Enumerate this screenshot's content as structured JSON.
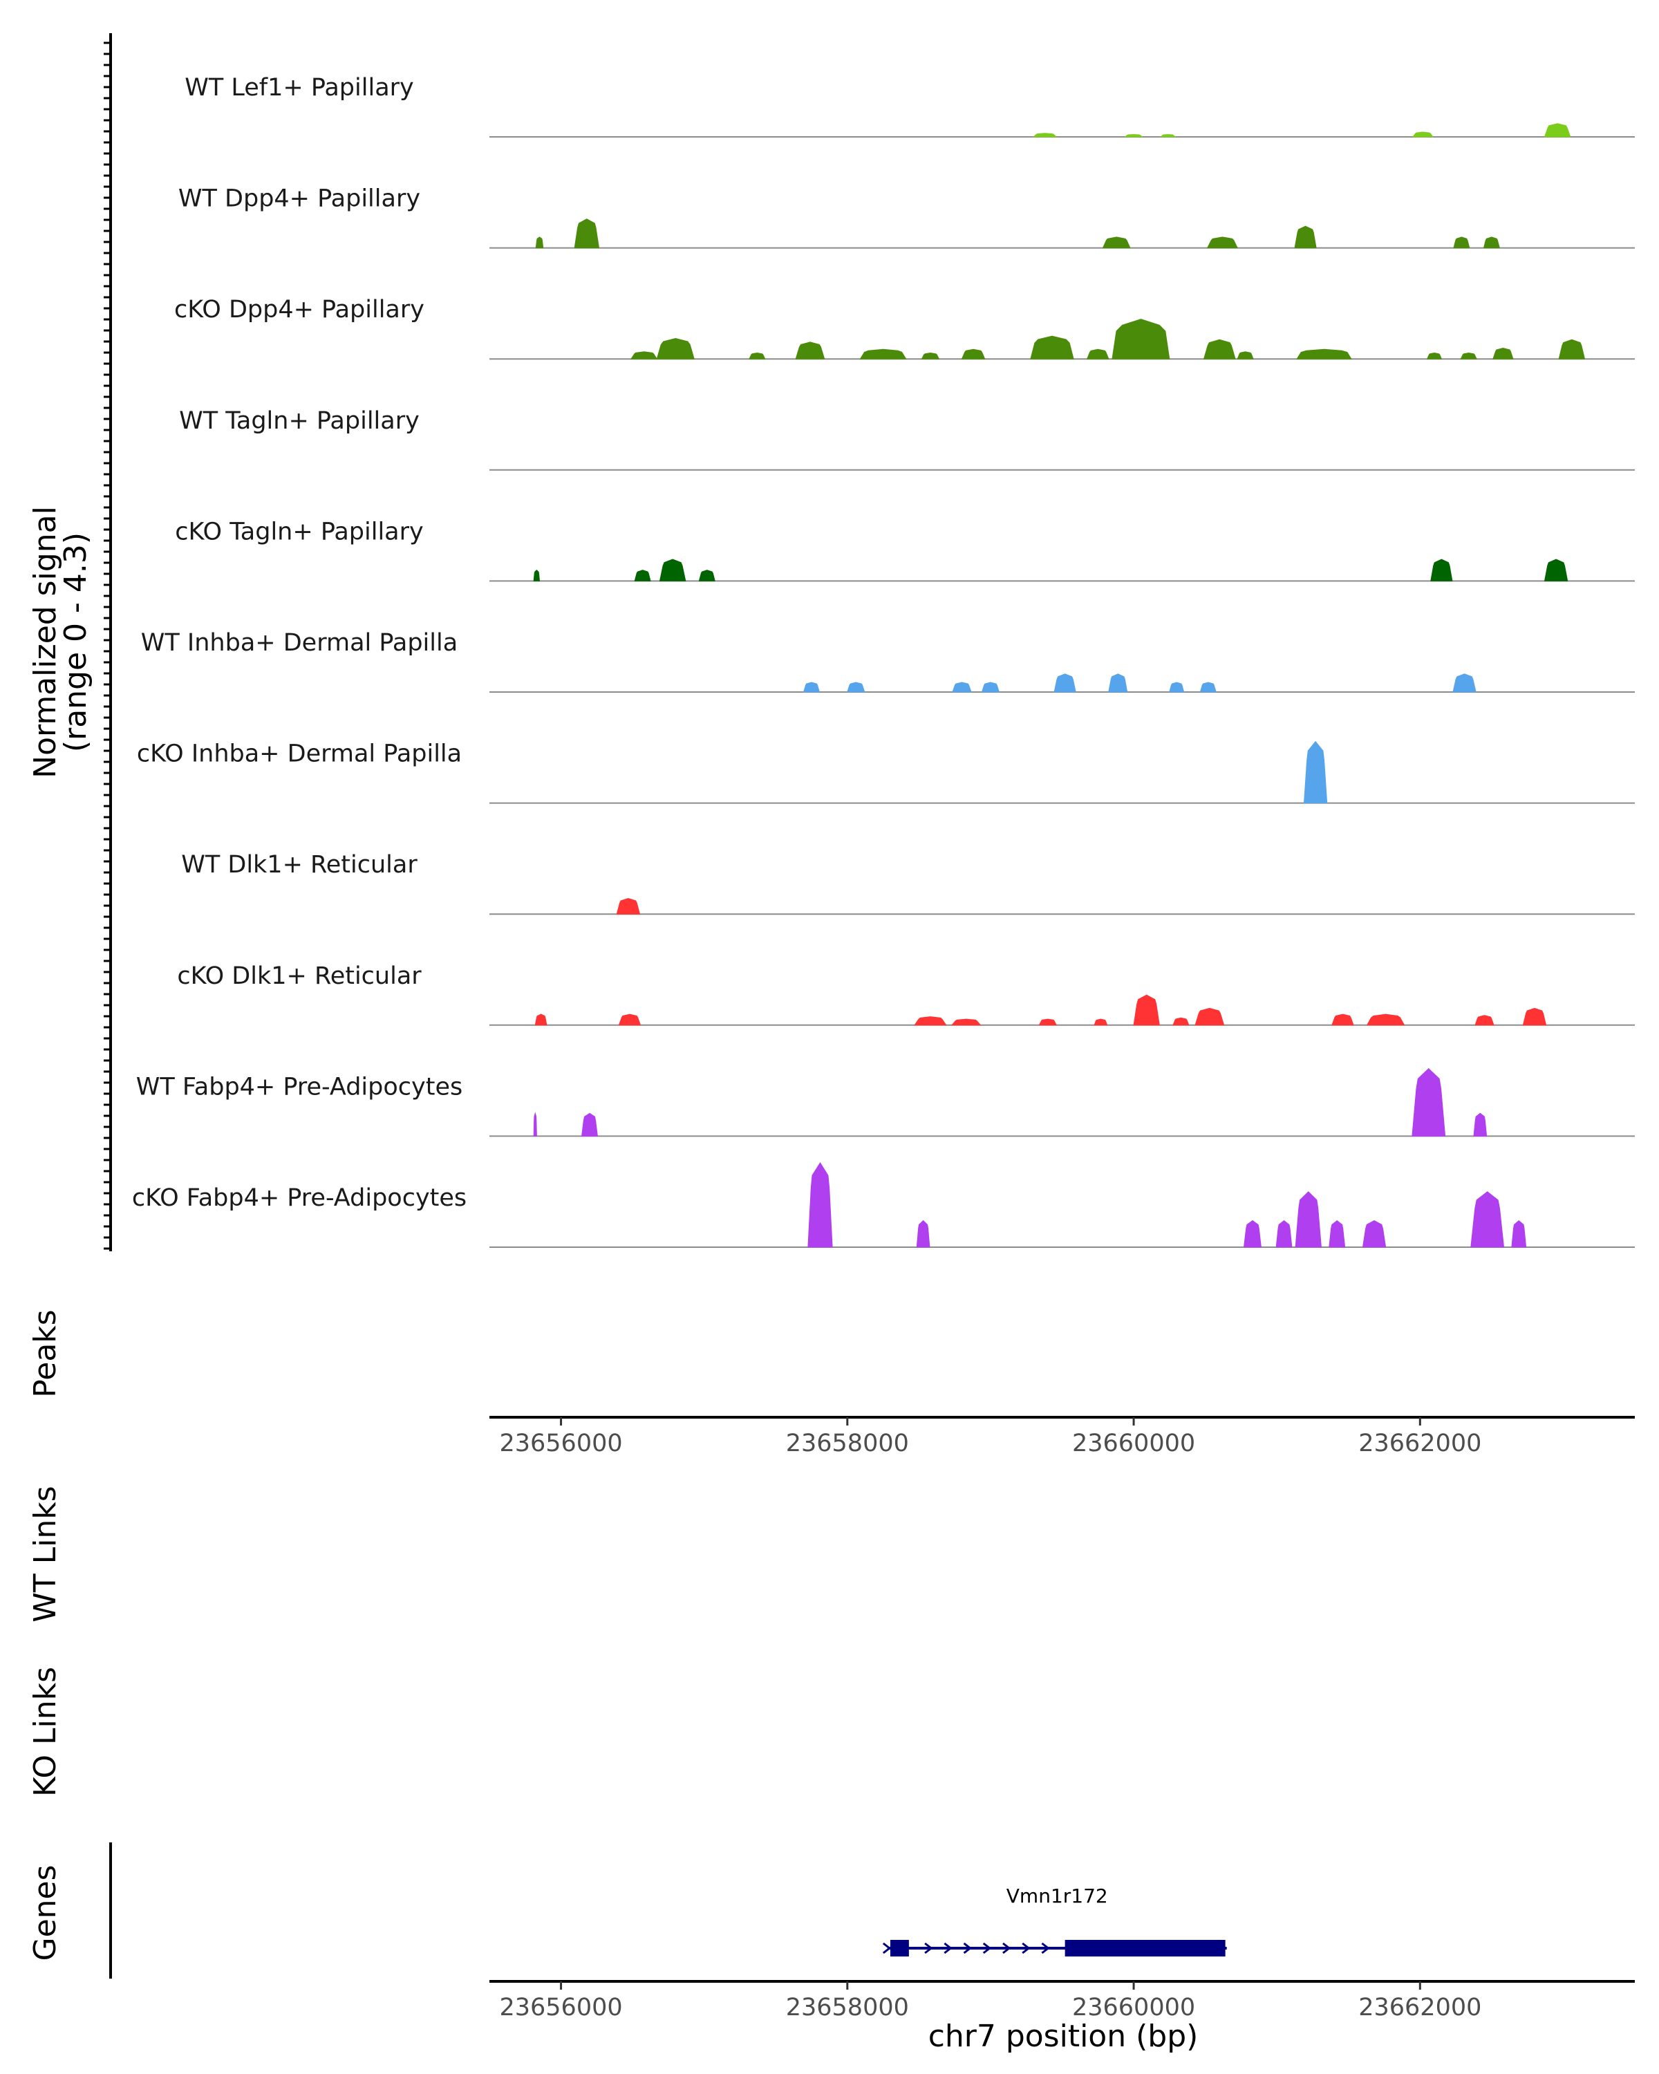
{
  "chart_data": {
    "type": "area",
    "title": "",
    "region": {
      "chromosome": "chr7",
      "start": 23655500,
      "end": 23663500
    },
    "y_axis_label": "Normalized signal",
    "y_axis_sublabel": "(range 0 - 4.3)",
    "y_range": [
      0,
      4.3
    ],
    "x_axis_label": "chr7 position (bp)",
    "x_ticks": [
      23656000,
      23658000,
      23660000,
      23662000
    ],
    "x_tick_labels": [
      "23656000",
      "23658000",
      "23660000",
      "23662000"
    ],
    "tracks": [
      {
        "name": "WT Lef1+ Papillary",
        "color": "#7ccd1b",
        "peaks": [
          [
            23659380,
            160,
            0.15
          ],
          [
            23660000,
            120,
            0.1
          ],
          [
            23660240,
            100,
            0.1
          ],
          [
            23662020,
            140,
            0.2
          ],
          [
            23662960,
            180,
            0.55
          ]
        ]
      },
      {
        "name": "WT Dpp4+ Papillary",
        "color": "#4b8b0a",
        "peaks": [
          [
            23655850,
            50,
            0.45
          ],
          [
            23656180,
            170,
            1.2
          ],
          [
            23659880,
            190,
            0.45
          ],
          [
            23660620,
            210,
            0.45
          ],
          [
            23661200,
            150,
            0.9
          ],
          [
            23662290,
            110,
            0.45
          ],
          [
            23662500,
            110,
            0.45
          ]
        ]
      },
      {
        "name": "cKO Dpp4+ Papillary",
        "color": "#4b8b0a",
        "peaks": [
          [
            23656580,
            180,
            0.3
          ],
          [
            23656800,
            260,
            0.85
          ],
          [
            23657370,
            110,
            0.25
          ],
          [
            23657740,
            200,
            0.7
          ],
          [
            23658250,
            320,
            0.4
          ],
          [
            23658580,
            120,
            0.25
          ],
          [
            23658880,
            160,
            0.4
          ],
          [
            23659430,
            300,
            0.95
          ],
          [
            23659750,
            150,
            0.4
          ],
          [
            23660050,
            400,
            1.65
          ],
          [
            23660600,
            220,
            0.8
          ],
          [
            23660780,
            110,
            0.3
          ],
          [
            23661330,
            380,
            0.4
          ],
          [
            23662100,
            100,
            0.25
          ],
          [
            23662340,
            110,
            0.25
          ],
          [
            23662580,
            140,
            0.45
          ],
          [
            23663060,
            180,
            0.8
          ]
        ]
      },
      {
        "name": "WT Tagln+ Papillary",
        "color": "#006400",
        "peaks": []
      },
      {
        "name": "cKO Tagln+ Papillary",
        "color": "#006400",
        "peaks": [
          [
            23655830,
            40,
            0.45
          ],
          [
            23656570,
            110,
            0.45
          ],
          [
            23656780,
            180,
            0.9
          ],
          [
            23657020,
            110,
            0.45
          ],
          [
            23662150,
            150,
            0.9
          ],
          [
            23662950,
            160,
            0.9
          ]
        ]
      },
      {
        "name": "WT Inhba+ Dermal Papilla",
        "color": "#56a5ec",
        "peaks": [
          [
            23657750,
            110,
            0.4
          ],
          [
            23658060,
            120,
            0.4
          ],
          [
            23658800,
            130,
            0.4
          ],
          [
            23659000,
            120,
            0.4
          ],
          [
            23659520,
            150,
            0.75
          ],
          [
            23659890,
            130,
            0.75
          ],
          [
            23660300,
            100,
            0.4
          ],
          [
            23660520,
            110,
            0.4
          ],
          [
            23662310,
            160,
            0.75
          ]
        ]
      },
      {
        "name": "cKO Inhba+ Dermal Papilla",
        "color": "#56a5ec",
        "peaks": [
          [
            23661270,
            160,
            2.55
          ]
        ]
      },
      {
        "name": "WT Dlk1+ Reticular",
        "color": "#ff3333",
        "peaks": [
          [
            23656470,
            160,
            0.65
          ]
        ]
      },
      {
        "name": "cKO Dlk1+ Reticular",
        "color": "#ff3333",
        "peaks": [
          [
            23655860,
            80,
            0.45
          ],
          [
            23656480,
            150,
            0.45
          ],
          [
            23658580,
            220,
            0.35
          ],
          [
            23658830,
            200,
            0.25
          ],
          [
            23659400,
            120,
            0.25
          ],
          [
            23659770,
            90,
            0.25
          ],
          [
            23660090,
            180,
            1.25
          ],
          [
            23660330,
            110,
            0.3
          ],
          [
            23660530,
            200,
            0.7
          ],
          [
            23661460,
            150,
            0.45
          ],
          [
            23661760,
            260,
            0.45
          ],
          [
            23662450,
            130,
            0.4
          ],
          [
            23662800,
            160,
            0.7
          ]
        ]
      },
      {
        "name": "WT Fabp4+ Pre-Adipocytes",
        "color": "#b03ff0",
        "peaks": [
          [
            23655820,
            20,
            0.95
          ],
          [
            23656200,
            110,
            0.95
          ],
          [
            23662060,
            230,
            2.8
          ],
          [
            23662420,
            90,
            0.95
          ]
        ]
      },
      {
        "name": "cKO Fabp4+ Pre-Adipocytes",
        "color": "#b03ff0",
        "peaks": [
          [
            23657810,
            170,
            3.5
          ],
          [
            23658530,
            90,
            1.1
          ],
          [
            23660830,
            120,
            1.1
          ],
          [
            23661050,
            110,
            1.1
          ],
          [
            23661220,
            180,
            2.3
          ],
          [
            23661420,
            110,
            1.1
          ],
          [
            23661680,
            160,
            1.1
          ],
          [
            23662470,
            230,
            2.3
          ],
          [
            23662690,
            100,
            1.1
          ]
        ]
      }
    ],
    "peaks_track_label": "Peaks",
    "wt_links_label": "WT Links",
    "ko_links_label": "KO Links",
    "genes_track_label": "Genes",
    "gene": {
      "name": "Vmn1r172",
      "start": 23658280,
      "end": 23660650,
      "strand": "+",
      "exons": [
        [
          23658300,
          23658430
        ],
        [
          23659520,
          23660640
        ]
      ],
      "color": "#000080"
    }
  }
}
